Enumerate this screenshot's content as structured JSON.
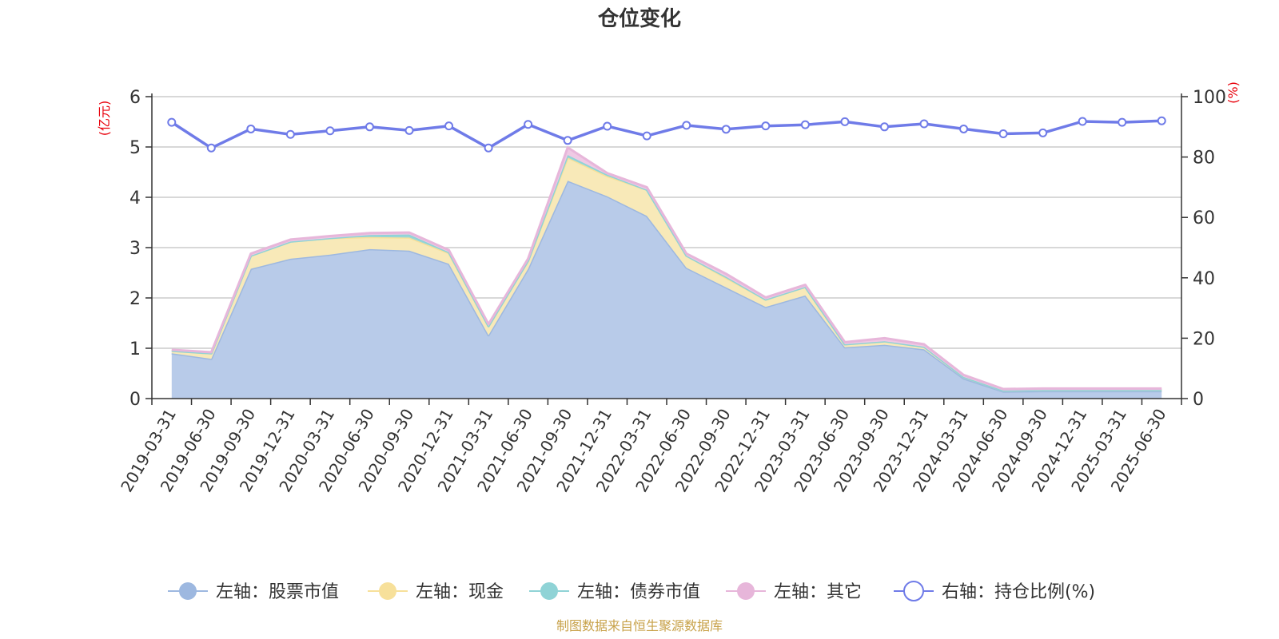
{
  "chart_data": {
    "type": "area",
    "title": "仓位变化",
    "left_unit": "(亿元)",
    "right_unit": "(%)",
    "source": "制图数据来自恒生聚源数据库",
    "x": [
      "2019-03-31",
      "2019-06-30",
      "2019-09-30",
      "2019-12-31",
      "2020-03-31",
      "2020-06-30",
      "2020-09-30",
      "2020-12-31",
      "2021-03-31",
      "2021-06-30",
      "2021-09-30",
      "2021-12-31",
      "2022-03-31",
      "2022-06-30",
      "2022-09-30",
      "2022-12-31",
      "2023-03-31",
      "2023-06-30",
      "2023-09-30",
      "2023-12-31",
      "2024-03-31",
      "2024-06-30",
      "2024-09-30",
      "2024-12-31",
      "2025-03-31",
      "2025-06-30"
    ],
    "left_axis": {
      "min": 0,
      "max": 6,
      "ticks": [
        0,
        1,
        2,
        3,
        4,
        5,
        6
      ]
    },
    "right_axis": {
      "min": 0,
      "max": 100,
      "ticks": [
        0,
        20,
        40,
        60,
        80,
        100
      ]
    },
    "grid": true,
    "legend_position": "bottom",
    "series": [
      {
        "name": "左轴：股票市值",
        "axis": "left",
        "stack": true,
        "color": "#9db8e0",
        "fill": "#b8cbe9",
        "values": [
          0.9,
          0.79,
          2.58,
          2.78,
          2.86,
          2.97,
          2.94,
          2.68,
          1.26,
          2.58,
          4.33,
          4.02,
          3.63,
          2.6,
          2.21,
          1.82,
          2.05,
          1.02,
          1.07,
          0.98,
          0.4,
          0.14,
          0.15,
          0.15,
          0.15,
          0.15
        ]
      },
      {
        "name": "左轴：现金",
        "axis": "left",
        "stack": true,
        "color": "#f7e09a",
        "fill": "#f8e9b8",
        "values": [
          0.05,
          0.11,
          0.26,
          0.34,
          0.33,
          0.24,
          0.26,
          0.21,
          0.18,
          0.16,
          0.46,
          0.4,
          0.52,
          0.24,
          0.19,
          0.15,
          0.17,
          0.06,
          0.07,
          0.05,
          0.03,
          0.02,
          0.02,
          0.02,
          0.02,
          0.02
        ]
      },
      {
        "name": "左轴：债券市值",
        "axis": "left",
        "stack": true,
        "color": "#8fd3d6",
        "fill": "#98d6d8",
        "values": [
          0,
          0,
          0,
          0,
          0,
          0.04,
          0.06,
          0.02,
          0,
          0,
          0.05,
          0.03,
          0,
          0,
          0.02,
          0,
          0,
          0,
          0,
          0,
          0,
          0,
          0,
          0,
          0,
          0
        ]
      },
      {
        "name": "左轴：其它",
        "axis": "left",
        "stack": true,
        "color": "#e7b6da",
        "fill": "#efc9e4",
        "values": [
          0.02,
          0.02,
          0.04,
          0.04,
          0.04,
          0.04,
          0.04,
          0.04,
          0.04,
          0.04,
          0.15,
          0.03,
          0.05,
          0.04,
          0.06,
          0.04,
          0.04,
          0.04,
          0.06,
          0.05,
          0.04,
          0.03,
          0.03,
          0.03,
          0.03,
          0.03
        ]
      },
      {
        "name": "右轴：持仓比例(%)",
        "axis": "right",
        "stack": false,
        "color": "#6f7be8",
        "values": [
          91.5,
          83.0,
          89.3,
          87.5,
          88.7,
          90.0,
          88.8,
          90.3,
          83.0,
          90.8,
          85.5,
          90.2,
          87.0,
          90.5,
          89.2,
          90.3,
          90.7,
          91.7,
          90.0,
          91.0,
          89.3,
          87.7,
          88.0,
          91.8,
          91.5,
          92.0
        ]
      }
    ]
  }
}
